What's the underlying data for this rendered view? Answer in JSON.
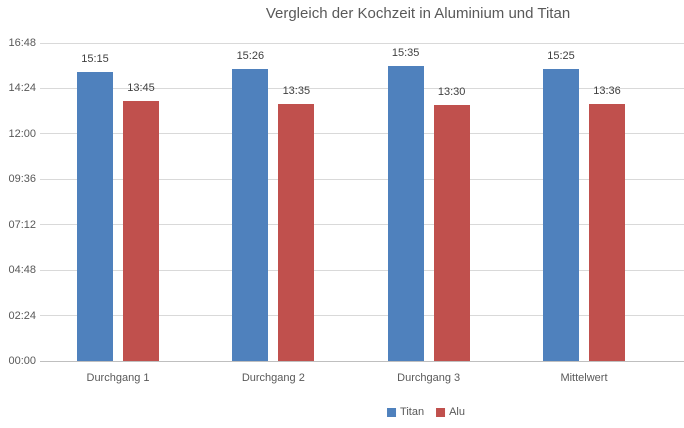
{
  "chart_data": {
    "type": "bar",
    "title": "Vergleich der Kochzeit in Aluminium und Titan",
    "categories": [
      "Durchgang 1",
      "Durchgang 2",
      "Durchgang 3",
      "Mittelwert"
    ],
    "series": [
      {
        "name": "Titan",
        "color": "#4F81BD",
        "values": [
          "15:15",
          "15:26",
          "15:35",
          "15:25"
        ],
        "values_minutes": [
          915,
          926,
          935,
          925
        ]
      },
      {
        "name": "Alu",
        "color": "#C0504D",
        "values": [
          "13:45",
          "13:35",
          "13:30",
          "13:36"
        ],
        "values_minutes": [
          825,
          815,
          810,
          816
        ]
      }
    ],
    "y_axis": {
      "ticks": [
        "00:00",
        "02:24",
        "04:48",
        "07:12",
        "09:36",
        "12:00",
        "14:24",
        "16:48"
      ],
      "min_label": "00:00",
      "max_label": "16:48",
      "min_minutes": 0,
      "max_minutes": 1008,
      "gridlines": true
    },
    "xlabel": "",
    "ylabel": "",
    "legend_position": "bottom",
    "data_labels": true
  },
  "colors": {
    "title_text": "#595959",
    "axis_text": "#595959",
    "data_label_text": "#404040",
    "gridline": "#d9d9d9",
    "axis_line": "#bfbfbf",
    "background": "#ffffff"
  }
}
